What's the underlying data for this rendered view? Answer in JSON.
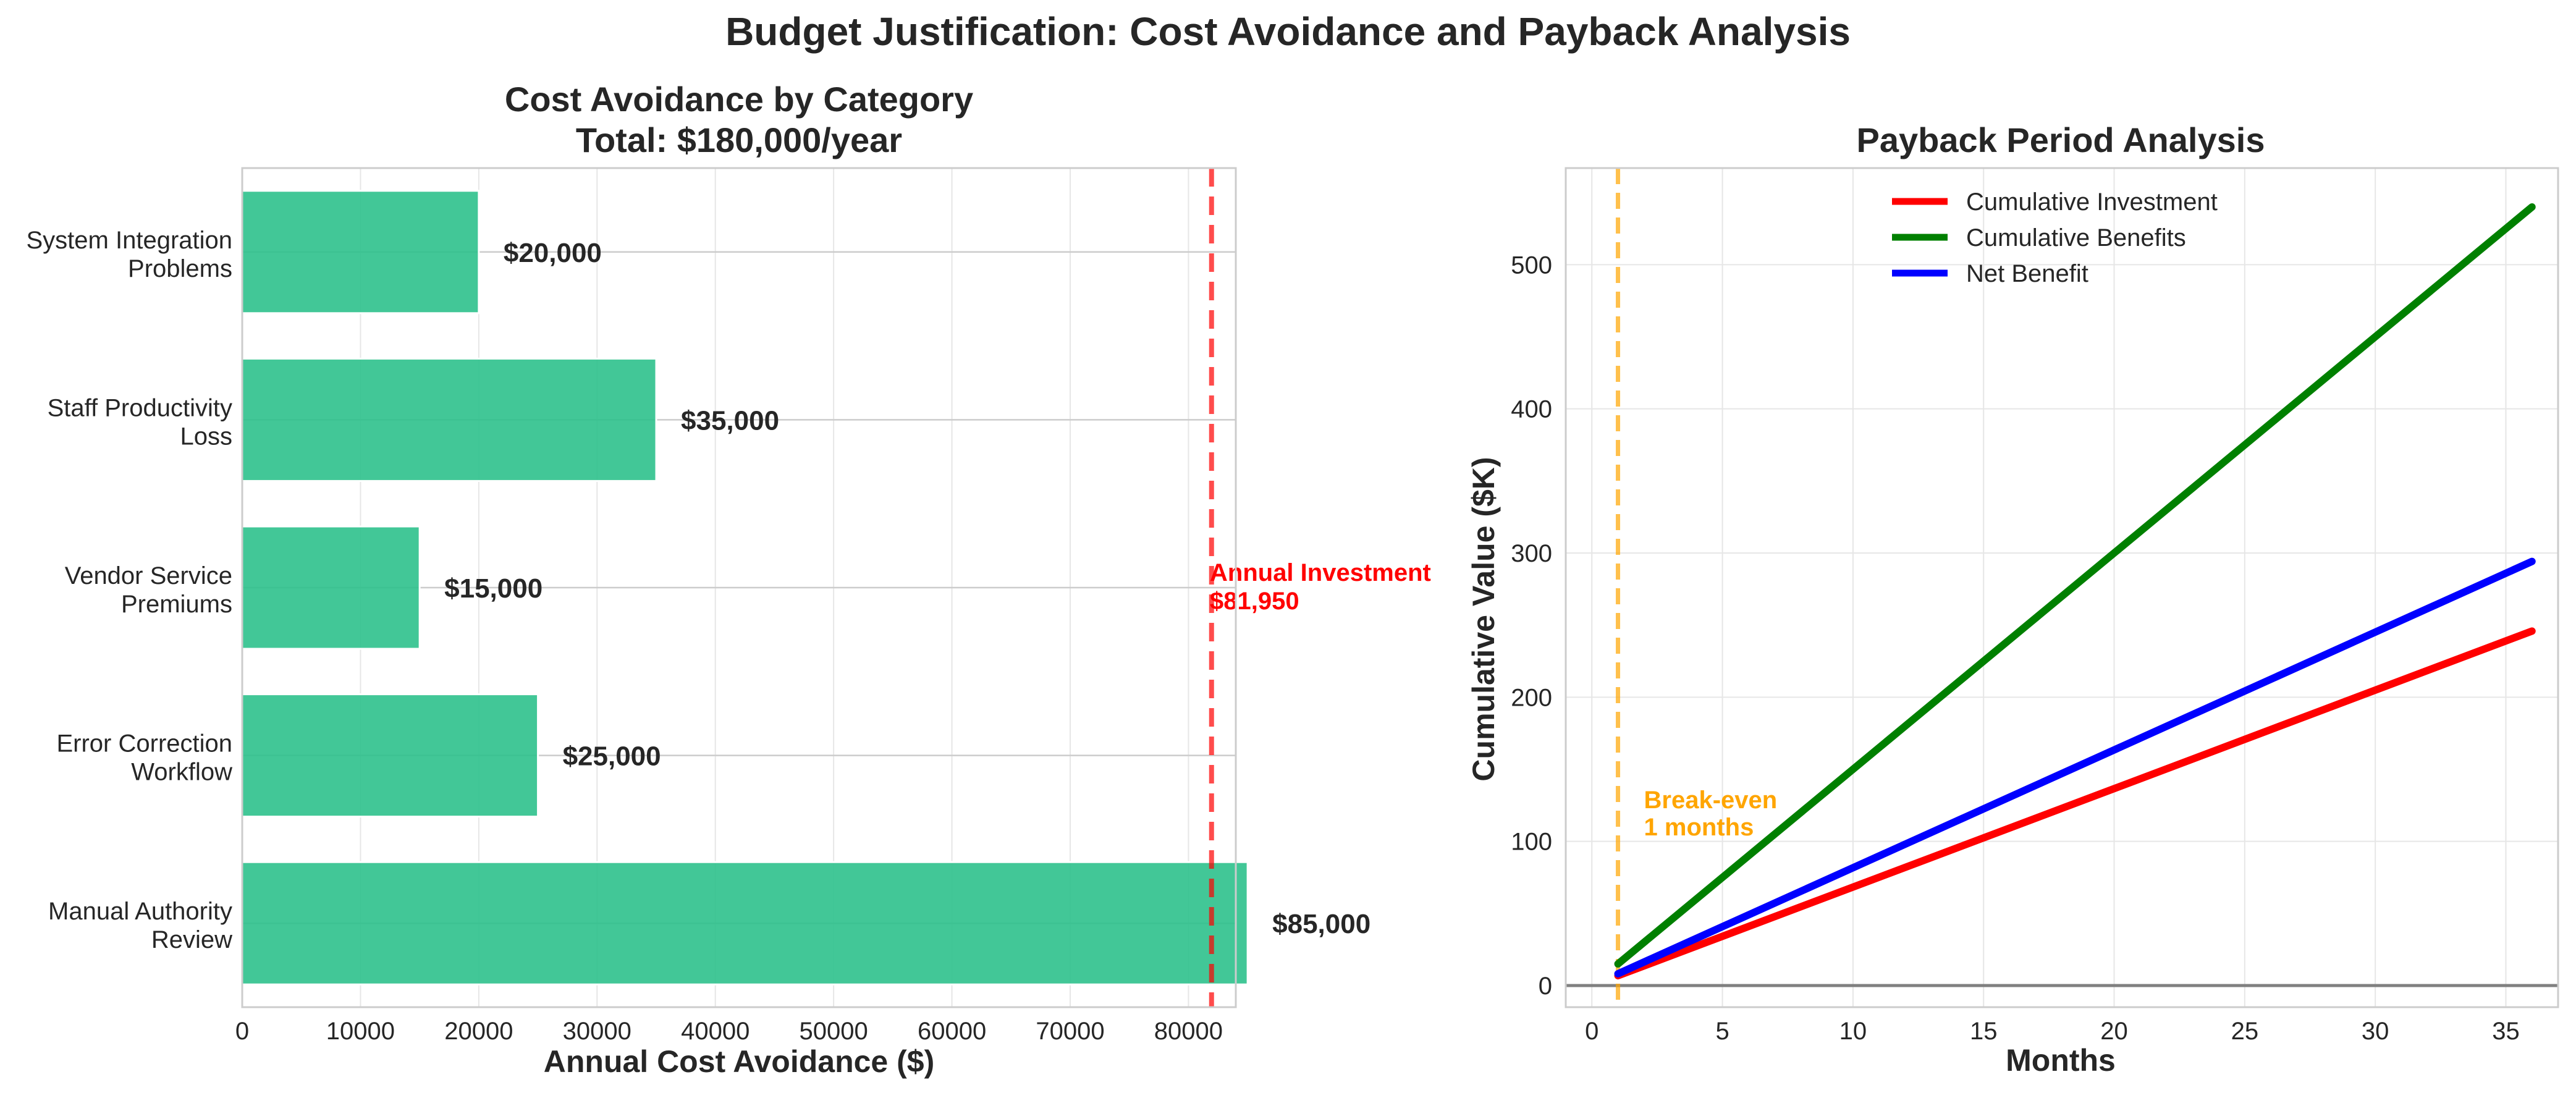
{
  "title": "Budget Justification: Cost Avoidance and Payback Analysis",
  "colors": {
    "bar": "#2ec18c",
    "investment_line": "#ff0000",
    "benefits_line": "#008000",
    "net_line": "#0000ff",
    "breakeven": "#ffa500"
  },
  "chart_data": [
    {
      "type": "bar",
      "orientation": "horizontal",
      "title": "Cost Avoidance by Category",
      "subtitle": "Total: $180,000/year",
      "xlabel": "Annual Cost Avoidance ($)",
      "ylabel": "",
      "xlim": [
        0,
        84000
      ],
      "xticks": [
        0,
        10000,
        20000,
        30000,
        40000,
        50000,
        60000,
        70000,
        80000
      ],
      "grid": true,
      "categories": [
        [
          "Manual Authority",
          "Review"
        ],
        [
          "Error Correction",
          "Workflow"
        ],
        [
          "Vendor Service",
          "Premiums"
        ],
        [
          "Staff Productivity",
          "Loss"
        ],
        [
          "System Integration",
          "Problems"
        ]
      ],
      "values": [
        85000,
        25000,
        15000,
        35000,
        20000
      ],
      "value_labels": [
        "$85,000",
        "$25,000",
        "$15,000",
        "$35,000",
        "$20,000"
      ],
      "reference_line": {
        "value": 81950,
        "label_lines": [
          "Annual Investment",
          "$81,950"
        ],
        "style": "dashed"
      }
    },
    {
      "type": "line",
      "title": "Payback Period Analysis",
      "xlabel": "Months",
      "ylabel": "Cumulative Value ($K)",
      "xlim": [
        -1,
        37
      ],
      "ylim": [
        -15,
        567
      ],
      "xticks": [
        0,
        5,
        10,
        15,
        20,
        25,
        30,
        35
      ],
      "yticks": [
        0,
        100,
        200,
        300,
        400,
        500
      ],
      "grid": true,
      "legend_position": "top-center",
      "series": [
        {
          "name": "Cumulative Investment",
          "x": [
            1,
            36
          ],
          "y": [
            6.83,
            245.85
          ]
        },
        {
          "name": "Cumulative Benefits",
          "x": [
            1,
            36
          ],
          "y": [
            15,
            540
          ]
        },
        {
          "name": "Net Benefit",
          "x": [
            1,
            36
          ],
          "y": [
            8.17,
            294.15
          ]
        }
      ],
      "zero_line": 0,
      "breakeven": {
        "x": 1,
        "label_lines": [
          "Break-even",
          "1 months"
        ]
      }
    }
  ]
}
